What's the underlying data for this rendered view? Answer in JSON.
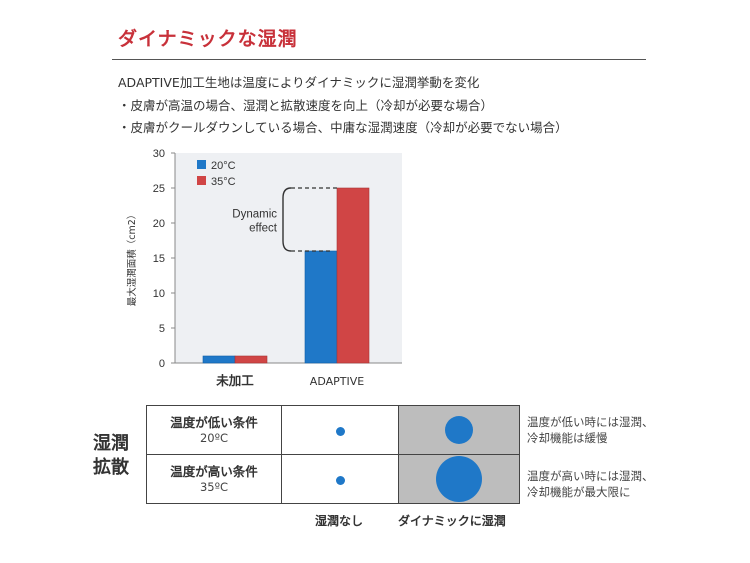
{
  "title": "ダイナミックな湿潤",
  "description": [
    "ADAPTIVE加工生地は温度によりダイナミックに湿潤挙動を変化",
    "・皮膚が高温の場合、湿潤と拡散速度を向上（冷却が必要な場合）",
    "・皮膚がクールダウンしている場合、中庸な湿潤速度（冷却が必要でない場合）"
  ],
  "chart_data": {
    "type": "bar",
    "categories": [
      "未加工",
      "ADAPTIVE"
    ],
    "series": [
      {
        "name": "20°C",
        "values": [
          1,
          16
        ],
        "color": "#1f78c8"
      },
      {
        "name": "35°C",
        "values": [
          1,
          25
        ],
        "color": "#d04545"
      }
    ],
    "ylabel": "最大湿潤面積（cm2）",
    "ylim": [
      0,
      30
    ],
    "yticks": [
      "0",
      "5",
      "10",
      "15",
      "20",
      "25",
      "30"
    ],
    "annotation": [
      "Dynamic",
      "effect"
    ],
    "legend_position": "top-left",
    "grid": false
  },
  "table": {
    "side_label": [
      "湿潤",
      "拡散"
    ],
    "rows": [
      {
        "condition": "温度が低い条件",
        "temp": "20ºC",
        "plain_dot": 0.15,
        "dynamic_dot": 0.45,
        "note": [
          "温度が低い時には湿潤、",
          "冷却機能は緩慢"
        ]
      },
      {
        "condition": "温度が高い条件",
        "temp": "35ºC",
        "plain_dot": 0.15,
        "dynamic_dot": 1.0,
        "note": [
          "温度が高い時には湿潤、",
          "冷却機能が最大限に"
        ]
      }
    ],
    "col_labels": [
      "湿潤なし",
      "ダイナミックに湿潤"
    ]
  }
}
